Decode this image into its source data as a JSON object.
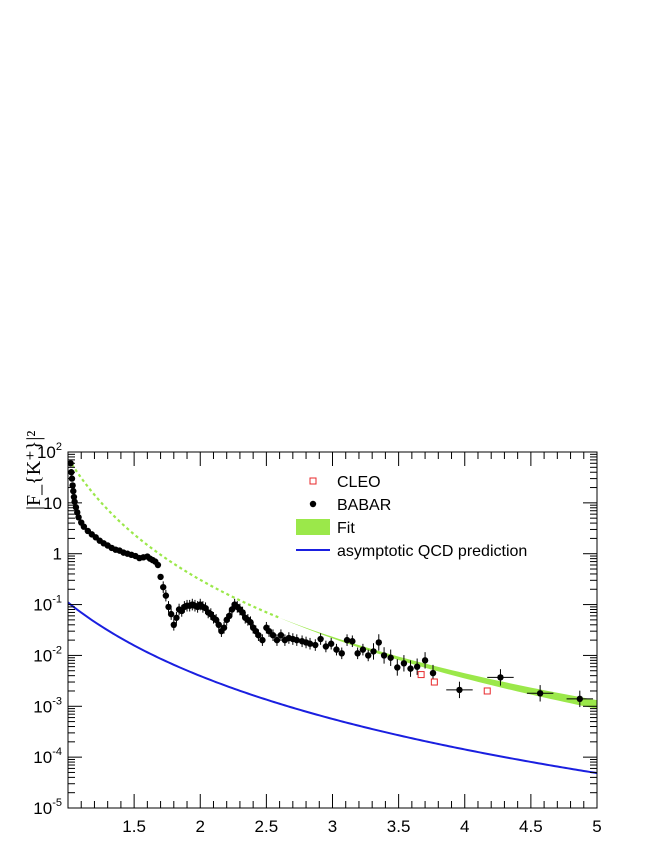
{
  "chart_data": {
    "type": "scatter",
    "title": "",
    "xlabel": "",
    "ylabel": "|F_{K⁺}|²",
    "xscale": "linear",
    "yscale": "log",
    "xlim": [
      1.0,
      5.0
    ],
    "ylim": [
      1e-05,
      100
    ],
    "x_tick_labels": [
      "1.5",
      "2",
      "2.5",
      "3",
      "3.5",
      "4",
      "4.5",
      "5"
    ],
    "x_tick_values": [
      1.5,
      2,
      2.5,
      3,
      3.5,
      4,
      4.5,
      5
    ],
    "y_tick_values": [
      1e-05,
      0.0001,
      0.001,
      0.01,
      0.1,
      1,
      10,
      100
    ],
    "y_tick_labels": [
      {
        "base": "10",
        "exp": "-5"
      },
      {
        "base": "10",
        "exp": "-4"
      },
      {
        "base": "10",
        "exp": "-3"
      },
      {
        "base": "10",
        "exp": "-2"
      },
      {
        "base": "10",
        "exp": "-1"
      },
      {
        "base": "1",
        "exp": ""
      },
      {
        "base": "10",
        "exp": ""
      },
      {
        "base": "10",
        "exp": "2"
      }
    ],
    "grid": false,
    "legend_position": "top-right",
    "series": [
      {
        "name": "CLEO",
        "marker": "open-square",
        "color": "#e8282b",
        "points": [
          {
            "x": 3.67,
            "y": 0.0042
          },
          {
            "x": 3.77,
            "y": 0.003
          },
          {
            "x": 4.17,
            "y": 0.002
          }
        ]
      },
      {
        "name": "BABAR",
        "marker": "filled-circle",
        "color": "#000000",
        "points": [
          {
            "x": 1.02,
            "y": 60
          },
          {
            "x": 1.025,
            "y": 40
          },
          {
            "x": 1.03,
            "y": 30
          },
          {
            "x": 1.035,
            "y": 22
          },
          {
            "x": 1.04,
            "y": 17
          },
          {
            "x": 1.045,
            "y": 13
          },
          {
            "x": 1.05,
            "y": 10.5
          },
          {
            "x": 1.06,
            "y": 8.2
          },
          {
            "x": 1.07,
            "y": 6.5
          },
          {
            "x": 1.08,
            "y": 5.2
          },
          {
            "x": 1.1,
            "y": 4.1
          },
          {
            "x": 1.12,
            "y": 3.4
          },
          {
            "x": 1.15,
            "y": 2.8
          },
          {
            "x": 1.18,
            "y": 2.4
          },
          {
            "x": 1.21,
            "y": 2.1
          },
          {
            "x": 1.24,
            "y": 1.8
          },
          {
            "x": 1.27,
            "y": 1.6
          },
          {
            "x": 1.3,
            "y": 1.45
          },
          {
            "x": 1.33,
            "y": 1.3
          },
          {
            "x": 1.36,
            "y": 1.2
          },
          {
            "x": 1.39,
            "y": 1.15
          },
          {
            "x": 1.42,
            "y": 1.05
          },
          {
            "x": 1.45,
            "y": 1.0
          },
          {
            "x": 1.48,
            "y": 0.95
          },
          {
            "x": 1.51,
            "y": 0.9
          },
          {
            "x": 1.54,
            "y": 0.82
          },
          {
            "x": 1.57,
            "y": 0.85
          },
          {
            "x": 1.6,
            "y": 0.88
          },
          {
            "x": 1.62,
            "y": 0.8
          },
          {
            "x": 1.64,
            "y": 0.75
          },
          {
            "x": 1.66,
            "y": 0.7
          },
          {
            "x": 1.68,
            "y": 0.6
          },
          {
            "x": 1.7,
            "y": 0.35
          },
          {
            "x": 1.72,
            "y": 0.22
          },
          {
            "x": 1.74,
            "y": 0.15
          },
          {
            "x": 1.76,
            "y": 0.09
          },
          {
            "x": 1.78,
            "y": 0.065
          },
          {
            "x": 1.8,
            "y": 0.04
          },
          {
            "x": 1.82,
            "y": 0.055
          },
          {
            "x": 1.84,
            "y": 0.08
          },
          {
            "x": 1.86,
            "y": 0.075
          },
          {
            "x": 1.88,
            "y": 0.09
          },
          {
            "x": 1.9,
            "y": 0.095
          },
          {
            "x": 1.92,
            "y": 0.095
          },
          {
            "x": 1.94,
            "y": 0.1
          },
          {
            "x": 1.96,
            "y": 0.095
          },
          {
            "x": 1.98,
            "y": 0.09
          },
          {
            "x": 2.0,
            "y": 0.1
          },
          {
            "x": 2.02,
            "y": 0.09
          },
          {
            "x": 2.04,
            "y": 0.085
          },
          {
            "x": 2.06,
            "y": 0.07
          },
          {
            "x": 2.08,
            "y": 0.065
          },
          {
            "x": 2.1,
            "y": 0.055
          },
          {
            "x": 2.12,
            "y": 0.05
          },
          {
            "x": 2.14,
            "y": 0.04
          },
          {
            "x": 2.16,
            "y": 0.03
          },
          {
            "x": 2.18,
            "y": 0.035
          },
          {
            "x": 2.2,
            "y": 0.05
          },
          {
            "x": 2.22,
            "y": 0.06
          },
          {
            "x": 2.24,
            "y": 0.08
          },
          {
            "x": 2.26,
            "y": 0.1
          },
          {
            "x": 2.28,
            "y": 0.09
          },
          {
            "x": 2.3,
            "y": 0.08
          },
          {
            "x": 2.32,
            "y": 0.07
          },
          {
            "x": 2.34,
            "y": 0.055
          },
          {
            "x": 2.36,
            "y": 0.05
          },
          {
            "x": 2.38,
            "y": 0.045
          },
          {
            "x": 2.4,
            "y": 0.035
          },
          {
            "x": 2.42,
            "y": 0.03
          },
          {
            "x": 2.44,
            "y": 0.025
          },
          {
            "x": 2.47,
            "y": 0.02
          },
          {
            "x": 2.5,
            "y": 0.035
          },
          {
            "x": 2.52,
            "y": 0.03
          },
          {
            "x": 2.55,
            "y": 0.025
          },
          {
            "x": 2.58,
            "y": 0.02
          },
          {
            "x": 2.61,
            "y": 0.025
          },
          {
            "x": 2.64,
            "y": 0.02
          },
          {
            "x": 2.67,
            "y": 0.022
          },
          {
            "x": 2.7,
            "y": 0.021
          },
          {
            "x": 2.73,
            "y": 0.02
          },
          {
            "x": 2.77,
            "y": 0.019
          },
          {
            "x": 2.8,
            "y": 0.018
          },
          {
            "x": 2.83,
            "y": 0.017
          },
          {
            "x": 2.87,
            "y": 0.016
          },
          {
            "x": 2.91,
            "y": 0.021
          },
          {
            "x": 2.95,
            "y": 0.015
          },
          {
            "x": 2.99,
            "y": 0.017
          },
          {
            "x": 3.03,
            "y": 0.013
          },
          {
            "x": 3.07,
            "y": 0.011
          },
          {
            "x": 3.11,
            "y": 0.02
          },
          {
            "x": 3.15,
            "y": 0.019
          },
          {
            "x": 3.19,
            "y": 0.011
          },
          {
            "x": 3.23,
            "y": 0.013
          },
          {
            "x": 3.27,
            "y": 0.01
          },
          {
            "x": 3.31,
            "y": 0.012
          },
          {
            "x": 3.35,
            "y": 0.018
          },
          {
            "x": 3.39,
            "y": 0.01
          },
          {
            "x": 3.44,
            "y": 0.009
          },
          {
            "x": 3.49,
            "y": 0.0058
          },
          {
            "x": 3.54,
            "y": 0.007
          },
          {
            "x": 3.59,
            "y": 0.0055
          },
          {
            "x": 3.64,
            "y": 0.006
          },
          {
            "x": 3.7,
            "y": 0.008
          },
          {
            "x": 3.76,
            "y": 0.0045
          },
          {
            "x": 3.96,
            "y": 0.0021
          },
          {
            "x": 4.27,
            "y": 0.0037
          },
          {
            "x": 4.57,
            "y": 0.0018
          },
          {
            "x": 4.87,
            "y": 0.0014
          }
        ]
      },
      {
        "name": "Fit",
        "style": "green-band",
        "color": "#9be84a"
      },
      {
        "name": "asymptotic QCD prediction",
        "style": "solid-line",
        "color": "#1a1fe0"
      }
    ]
  }
}
